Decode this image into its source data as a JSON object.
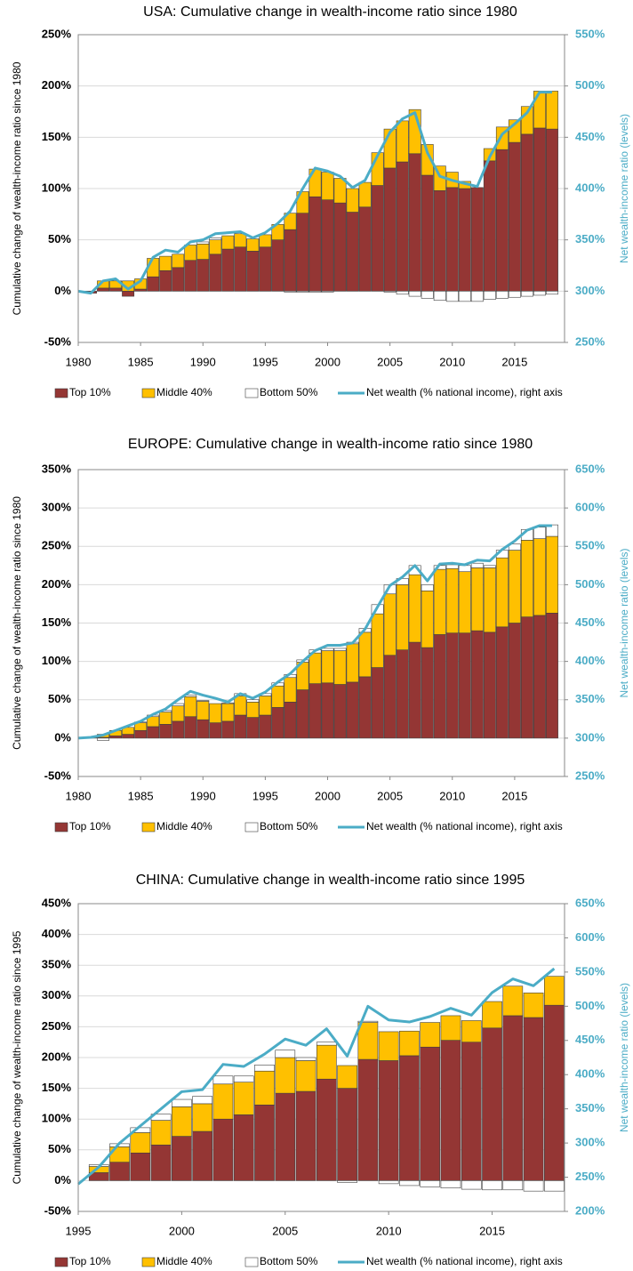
{
  "chart_data": [
    {
      "type": "bar",
      "stacked": true,
      "grid": true,
      "title": "USA: Cumulative change in wealth-income ratio since 1980",
      "y_label": "Cumulative change of wealth-income ratio since 1980",
      "y2_label": "Net wealth-income ratio (levels)",
      "x": [
        1980,
        1981,
        1982,
        1983,
        1984,
        1985,
        1986,
        1987,
        1988,
        1989,
        1990,
        1991,
        1992,
        1993,
        1994,
        1995,
        1996,
        1997,
        1998,
        1999,
        2000,
        2001,
        2002,
        2003,
        2004,
        2005,
        2006,
        2007,
        2008,
        2009,
        2010,
        2011,
        2012,
        2013,
        2014,
        2015,
        2016,
        2017,
        2018
      ],
      "xlim": [
        1980,
        2019
      ],
      "xticks": [
        1980,
        1985,
        1990,
        1995,
        2000,
        2005,
        2010,
        2015
      ],
      "ylim": [
        -50,
        250
      ],
      "yticks": [
        {
          "value": -50,
          "label": "-50%"
        },
        {
          "value": 0,
          "label": "0%"
        },
        {
          "value": 50,
          "label": "50%"
        },
        {
          "value": 100,
          "label": "100%"
        },
        {
          "value": 150,
          "label": "150%"
        },
        {
          "value": 200,
          "label": "200%"
        },
        {
          "value": 250,
          "label": "250%"
        }
      ],
      "y2lim": [
        250,
        550
      ],
      "y2ticks": [
        {
          "value": 250,
          "label": "250%"
        },
        {
          "value": 300,
          "label": "300%"
        },
        {
          "value": 350,
          "label": "350%"
        },
        {
          "value": 400,
          "label": "400%"
        },
        {
          "value": 450,
          "label": "450%"
        },
        {
          "value": 500,
          "label": "500%"
        },
        {
          "value": 550,
          "label": "550%"
        }
      ],
      "series": [
        {
          "name": "Top 10%",
          "color": "#943634",
          "values": [
            0,
            -2,
            3,
            3,
            -5,
            2,
            14,
            20,
            23,
            30,
            31,
            36,
            41,
            43,
            39,
            43,
            50,
            60,
            76,
            92,
            89,
            86,
            77,
            82,
            103,
            120,
            126,
            134,
            113,
            98,
            101,
            100,
            101,
            127,
            138,
            145,
            153,
            159,
            158
          ]
        },
        {
          "name": "Middle 40%",
          "color": "#FFC000",
          "values": [
            0,
            0,
            7,
            7,
            10,
            10,
            18,
            14,
            13,
            15,
            15,
            14,
            13,
            13,
            12,
            12,
            15,
            16,
            21,
            27,
            27,
            24,
            23,
            24,
            32,
            38,
            40,
            43,
            30,
            24,
            15,
            7,
            0,
            12,
            22,
            22,
            27,
            36,
            37
          ]
        },
        {
          "name": "Bottom 50%",
          "color": "#FFFFFF",
          "values": [
            0,
            0,
            0,
            0,
            0,
            0,
            0,
            0,
            0,
            0,
            2,
            2,
            0,
            0,
            0,
            0,
            0,
            -1,
            -1,
            -1,
            -1,
            0,
            0,
            0,
            0,
            -1,
            -3,
            -5,
            -7,
            -9,
            -10,
            -10,
            -10,
            -8,
            -7,
            -6,
            -5,
            -4,
            -3
          ]
        },
        {
          "name": "Net wealth (% national income), right axis",
          "color": "#4BACC6",
          "type": "line",
          "axis": "y2",
          "values": [
            300,
            298,
            310,
            312,
            302,
            310,
            333,
            340,
            338,
            348,
            350,
            356,
            357,
            358,
            352,
            357,
            366,
            378,
            400,
            420,
            417,
            412,
            401,
            408,
            432,
            455,
            468,
            474,
            435,
            412,
            408,
            405,
            402,
            431,
            453,
            463,
            474,
            494,
            494
          ]
        }
      ]
    },
    {
      "type": "bar",
      "stacked": true,
      "grid": true,
      "title": "EUROPE: Cumulative change in wealth-income ratio since 1980",
      "y_label": "Cumulative change of wealth-income ratio since 1980",
      "y2_label": "Net wealth-income ratio (levels)",
      "x": [
        1980,
        1981,
        1982,
        1983,
        1984,
        1985,
        1986,
        1987,
        1988,
        1989,
        1990,
        1991,
        1992,
        1993,
        1994,
        1995,
        1996,
        1997,
        1998,
        1999,
        2000,
        2001,
        2002,
        2003,
        2004,
        2005,
        2006,
        2007,
        2008,
        2009,
        2010,
        2011,
        2012,
        2013,
        2014,
        2015,
        2016,
        2017,
        2018
      ],
      "xlim": [
        1980,
        2019
      ],
      "xticks": [
        1980,
        1985,
        1990,
        1995,
        2000,
        2005,
        2010,
        2015
      ],
      "ylim": [
        -50,
        350
      ],
      "yticks": [
        {
          "value": -50,
          "label": "-50%"
        },
        {
          "value": 0,
          "label": "0%"
        },
        {
          "value": 50,
          "label": "50%"
        },
        {
          "value": 100,
          "label": "100%"
        },
        {
          "value": 150,
          "label": "150%"
        },
        {
          "value": 200,
          "label": "200%"
        },
        {
          "value": 250,
          "label": "250%"
        },
        {
          "value": 300,
          "label": "300%"
        },
        {
          "value": 350,
          "label": "350%"
        }
      ],
      "y2lim": [
        250,
        650
      ],
      "y2ticks": [
        {
          "value": 250,
          "label": "250%"
        },
        {
          "value": 300,
          "label": "300%"
        },
        {
          "value": 350,
          "label": "350%"
        },
        {
          "value": 400,
          "label": "400%"
        },
        {
          "value": 450,
          "label": "450%"
        },
        {
          "value": 500,
          "label": "500%"
        },
        {
          "value": 550,
          "label": "550%"
        },
        {
          "value": 600,
          "label": "600%"
        },
        {
          "value": 650,
          "label": "650%"
        }
      ],
      "series": [
        {
          "name": "Top 10%",
          "color": "#943634",
          "values": [
            0,
            0,
            1,
            3,
            5,
            10,
            15,
            18,
            22,
            28,
            24,
            20,
            22,
            30,
            27,
            30,
            40,
            47,
            63,
            71,
            72,
            70,
            73,
            80,
            92,
            108,
            115,
            125,
            118,
            135,
            137,
            137,
            140,
            138,
            145,
            150,
            158,
            160,
            163
          ]
        },
        {
          "name": "Middle 40%",
          "color": "#FFC000",
          "values": [
            0,
            1,
            4,
            7,
            9,
            10,
            13,
            16,
            20,
            26,
            24,
            25,
            23,
            25,
            20,
            25,
            28,
            32,
            36,
            40,
            42,
            44,
            50,
            58,
            70,
            80,
            85,
            88,
            74,
            85,
            84,
            80,
            82,
            84,
            90,
            95,
            100,
            100,
            100
          ]
        },
        {
          "name": "Bottom 50%",
          "color": "#FFFFFF",
          "values": [
            0,
            0,
            -3,
            0,
            0,
            1,
            2,
            2,
            3,
            2,
            1,
            0,
            1,
            3,
            3,
            3,
            4,
            4,
            3,
            4,
            3,
            3,
            2,
            5,
            12,
            12,
            8,
            12,
            8,
            5,
            5,
            8,
            6,
            3,
            10,
            8,
            14,
            15,
            15
          ]
        },
        {
          "name": "Net wealth (% national income), right axis",
          "color": "#4BACC6",
          "type": "line",
          "axis": "y2",
          "values": [
            300,
            301,
            304,
            310,
            316,
            322,
            331,
            338,
            350,
            361,
            356,
            352,
            347,
            358,
            352,
            360,
            373,
            384,
            400,
            414,
            421,
            421,
            424,
            442,
            471,
            499,
            510,
            525,
            505,
            527,
            528,
            526,
            532,
            531,
            546,
            557,
            571,
            577,
            577
          ]
        }
      ]
    },
    {
      "type": "bar",
      "stacked": true,
      "grid": true,
      "title": "CHINA: Cumulative change in wealth-income ratio since 1995",
      "y_label": "Cumulative change of wealth-income ratio since 1995",
      "y2_label": "Net wealth-income ratio (levels)",
      "x": [
        1995,
        1996,
        1997,
        1998,
        1999,
        2000,
        2001,
        2002,
        2003,
        2004,
        2005,
        2006,
        2007,
        2008,
        2009,
        2010,
        2011,
        2012,
        2013,
        2014,
        2015,
        2016,
        2017,
        2018
      ],
      "xlim": [
        1995,
        2018.5
      ],
      "xticks": [
        1995,
        2000,
        2005,
        2010,
        2015
      ],
      "ylim": [
        -50,
        450
      ],
      "yticks": [
        {
          "value": -50,
          "label": "-50%"
        },
        {
          "value": 0,
          "label": "0%"
        },
        {
          "value": 50,
          "label": "50%"
        },
        {
          "value": 100,
          "label": "100%"
        },
        {
          "value": 150,
          "label": "150%"
        },
        {
          "value": 200,
          "label": "200%"
        },
        {
          "value": 250,
          "label": "250%"
        },
        {
          "value": 300,
          "label": "300%"
        },
        {
          "value": 350,
          "label": "350%"
        },
        {
          "value": 400,
          "label": "400%"
        },
        {
          "value": 450,
          "label": "450%"
        }
      ],
      "y2lim": [
        200,
        650
      ],
      "y2ticks": [
        {
          "value": 200,
          "label": "200%"
        },
        {
          "value": 250,
          "label": "250%"
        },
        {
          "value": 300,
          "label": "300%"
        },
        {
          "value": 350,
          "label": "350%"
        },
        {
          "value": 400,
          "label": "400%"
        },
        {
          "value": 450,
          "label": "450%"
        },
        {
          "value": 500,
          "label": "500%"
        },
        {
          "value": 550,
          "label": "550%"
        },
        {
          "value": 600,
          "label": "600%"
        },
        {
          "value": 650,
          "label": "650%"
        }
      ],
      "series": [
        {
          "name": "Top 10%",
          "color": "#943634",
          "values": [
            0,
            13,
            30,
            45,
            58,
            72,
            80,
            100,
            107,
            123,
            142,
            145,
            165,
            150,
            197,
            195,
            203,
            217,
            228,
            225,
            248,
            268,
            265,
            285
          ]
        },
        {
          "name": "Middle 40%",
          "color": "#FFC000",
          "values": [
            0,
            10,
            25,
            33,
            40,
            48,
            45,
            57,
            53,
            55,
            58,
            50,
            55,
            37,
            60,
            47,
            40,
            40,
            40,
            35,
            43,
            48,
            40,
            47
          ]
        },
        {
          "name": "Bottom 50%",
          "color": "#FFFFFF",
          "values": [
            0,
            3,
            5,
            8,
            10,
            12,
            12,
            13,
            10,
            10,
            12,
            5,
            5,
            -3,
            2,
            -5,
            -8,
            -10,
            -12,
            -14,
            -15,
            -15,
            -17,
            -17
          ]
        },
        {
          "name": "Net wealth (% national income), right axis",
          "color": "#4BACC6",
          "type": "line",
          "axis": "y2",
          "values": [
            240,
            265,
            300,
            325,
            350,
            375,
            378,
            415,
            412,
            430,
            452,
            443,
            467,
            427,
            500,
            480,
            477,
            485,
            497,
            487,
            520,
            540,
            530,
            555
          ]
        }
      ]
    }
  ]
}
